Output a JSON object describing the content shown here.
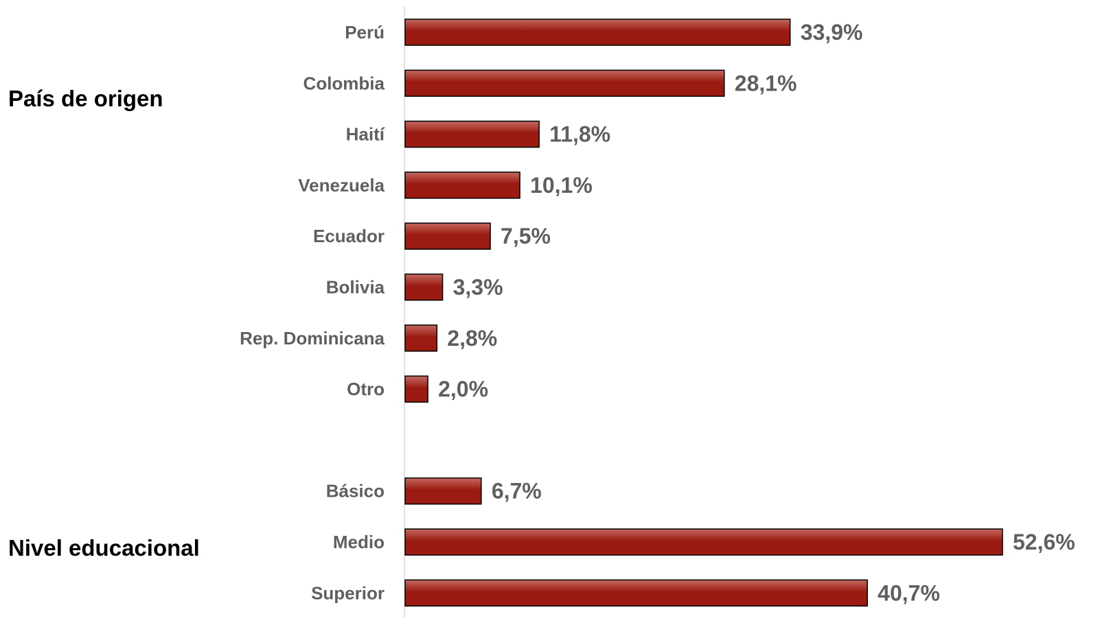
{
  "chart_data": {
    "type": "bar",
    "orientation": "horizontal",
    "title": "",
    "xlabel": "",
    "ylabel": "",
    "value_format": "percent",
    "decimal_separator": ",",
    "bar_color": "#9b1b12",
    "bar_highlight_color": "#c46a62",
    "bar_outline_color": "#000000",
    "axis_color": "#d9d9d9",
    "label_color": "#5f5f5f",
    "grid": false,
    "legend": "none",
    "xlim": [
      0,
      52.6
    ],
    "groups": [
      {
        "name": "País de origen",
        "categories": [
          "Perú",
          "Colombia",
          "Haití",
          "Venezuela",
          "Ecuador",
          "Bolivia",
          "Rep. Dominicana",
          "Otro"
        ],
        "values": [
          33.9,
          28.1,
          11.8,
          10.1,
          7.5,
          3.3,
          2.8,
          2.0
        ],
        "labels": [
          "33,9%",
          "28,1%",
          "11,8%",
          "10,1%",
          "7,5%",
          "3,3%",
          "2,8%",
          "2,0%"
        ]
      },
      {
        "name": "Nivel educacional",
        "categories": [
          "Básico",
          "Medio",
          "Superior"
        ],
        "values": [
          6.7,
          52.6,
          40.7
        ],
        "labels": [
          "6,7%",
          "52,6%",
          "40,7%"
        ]
      }
    ]
  }
}
